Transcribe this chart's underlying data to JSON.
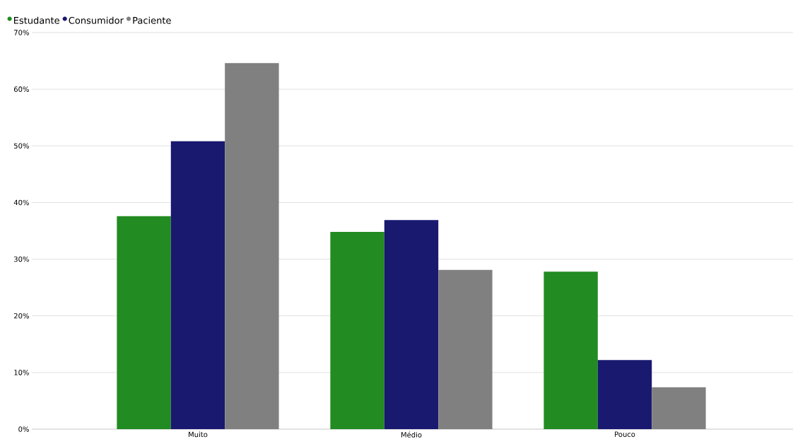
{
  "chart_data": {
    "type": "bar",
    "categories": [
      "Muito",
      "Médio",
      "Pouco"
    ],
    "series": [
      {
        "name": "Estudante",
        "color": "#228b22",
        "values": [
          37.6,
          34.8,
          27.8
        ]
      },
      {
        "name": "Consumidor",
        "color": "#191970",
        "values": [
          50.8,
          36.9,
          12.2
        ]
      },
      {
        "name": "Paciente",
        "color": "#808080",
        "values": [
          64.6,
          28.1,
          7.4
        ]
      }
    ],
    "ylim": [
      0,
      70
    ],
    "yticks": [
      {
        "value": 0,
        "label": "0%"
      },
      {
        "value": 10,
        "label": "10%"
      },
      {
        "value": 20,
        "label": "20%"
      },
      {
        "value": 30,
        "label": "30%"
      },
      {
        "value": 40,
        "label": "40%"
      },
      {
        "value": 50,
        "label": "50%"
      },
      {
        "value": 60,
        "label": "60%"
      },
      {
        "value": 70,
        "label": "70%"
      }
    ],
    "grid": "y",
    "legend": "top left",
    "marker": "circle"
  }
}
